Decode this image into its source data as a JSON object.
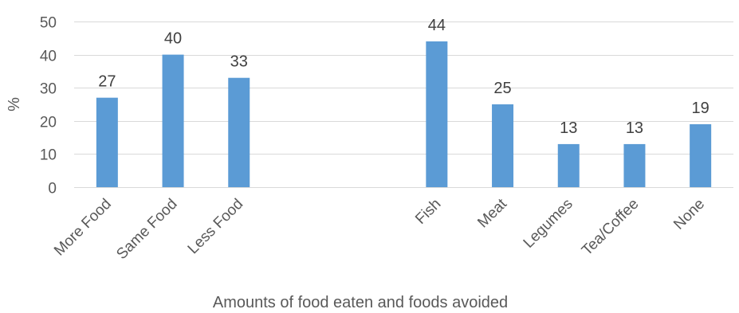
{
  "chart_data": {
    "type": "bar",
    "categories": [
      "More Food",
      "Same Food",
      "Less Food",
      "",
      "",
      "Fish",
      "Meat",
      "Legumes",
      "Tea/Coffee",
      "None"
    ],
    "values": [
      27,
      40,
      33,
      null,
      null,
      44,
      25,
      13,
      13,
      19
    ],
    "xlabel": "Amounts of food eaten and foods avoided",
    "ylabel": "%",
    "ylim": [
      0,
      50
    ],
    "yticks": [
      0,
      10,
      20,
      30,
      40,
      50
    ],
    "grid": true,
    "legend": "none",
    "bar_color": "#5b9bd5"
  }
}
